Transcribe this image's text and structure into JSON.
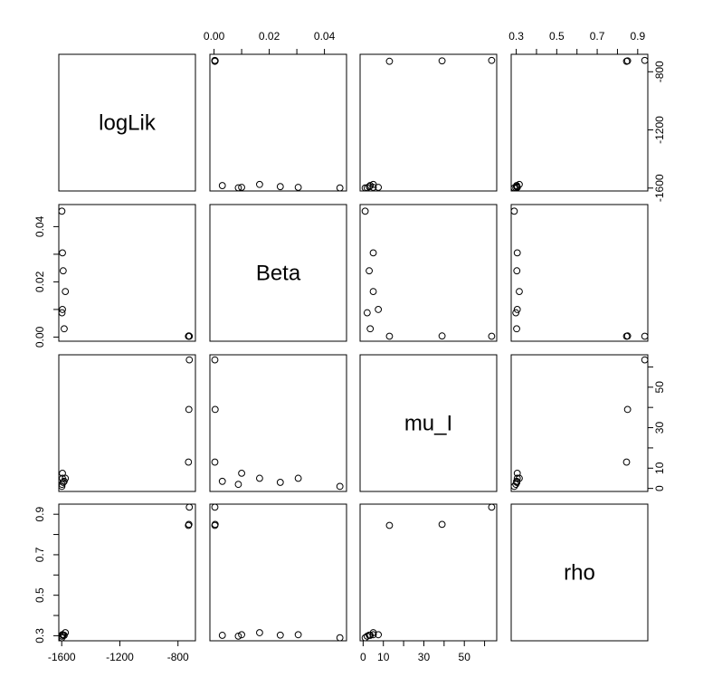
{
  "chart_data": {
    "type": "scatter",
    "layout": "scatterplot-matrix",
    "variables": [
      "logLik",
      "Beta",
      "mu_I",
      "rho"
    ],
    "grid": false,
    "legend": "none",
    "axes": {
      "logLik": {
        "lim": [
          -1620,
          -680
        ],
        "ticks": [
          -1600,
          -1200,
          -800
        ],
        "tick_labels": [
          "-1600",
          "-1200",
          "-800"
        ]
      },
      "Beta": {
        "lim": [
          -0.0015,
          0.048
        ],
        "ticks": [
          0.0,
          0.02,
          0.04
        ],
        "minor_ticks": [
          0.01,
          0.03
        ],
        "tick_labels": [
          "0.00",
          "0.02",
          "0.04"
        ]
      },
      "mu_I": {
        "lim": [
          -1.5,
          66
        ],
        "ticks": [
          0,
          10,
          30,
          50
        ],
        "minor_ticks": [
          20,
          40,
          60
        ],
        "tick_labels": [
          "0",
          "10",
          "30",
          "50"
        ]
      },
      "rho": {
        "lim": [
          0.275,
          0.95
        ],
        "ticks": [
          0.3,
          0.5,
          0.7,
          0.9
        ],
        "minor_ticks": [
          0.4,
          0.6,
          0.8
        ],
        "tick_labels": [
          "0.3",
          "0.5",
          "0.7",
          "0.9"
        ]
      }
    },
    "top_axis_labels": {
      "1": [
        "0.00",
        "0.02",
        "0.04"
      ],
      "3": [
        "0.3",
        "0.5",
        "0.7",
        "0.9"
      ]
    },
    "right_axis_labels": {
      "0": [
        "-1600",
        "-1200",
        "-800"
      ],
      "2": [
        "0",
        "10",
        "30",
        "50"
      ]
    },
    "bottom_axis_labels": {
      "0": [
        "-1600",
        "-1200",
        "-800"
      ],
      "2": [
        "0",
        "10",
        "30",
        "50"
      ]
    },
    "left_axis_labels": {
      "1": [
        "0.00",
        "0.02",
        "0.04"
      ],
      "3": [
        "0.3",
        "0.5",
        "0.7",
        "0.9"
      ]
    },
    "points": [
      {
        "logLik": -1599,
        "Beta": 0.0456,
        "mu_I": 1.0,
        "rho": 0.29
      },
      {
        "logLik": -1595,
        "Beta": 0.0305,
        "mu_I": 5.0,
        "rho": 0.305
      },
      {
        "logLik": -1590,
        "Beta": 0.024,
        "mu_I": 3.0,
        "rho": 0.303
      },
      {
        "logLik": -1575,
        "Beta": 0.0165,
        "mu_I": 5.0,
        "rho": 0.315
      },
      {
        "logLik": -1595,
        "Beta": 0.01,
        "mu_I": 7.5,
        "rho": 0.305
      },
      {
        "logLik": -1598,
        "Beta": 0.0088,
        "mu_I": 2.0,
        "rho": 0.298
      },
      {
        "logLik": -1583,
        "Beta": 0.003,
        "mu_I": 3.5,
        "rho": 0.302
      },
      {
        "logLik": -728,
        "Beta": 0.0003,
        "mu_I": 13.0,
        "rho": 0.845
      },
      {
        "logLik": -725,
        "Beta": 0.0004,
        "mu_I": 39.0,
        "rho": 0.85
      },
      {
        "logLik": -722,
        "Beta": 0.0003,
        "mu_I": 63.5,
        "rho": 0.935
      }
    ]
  }
}
